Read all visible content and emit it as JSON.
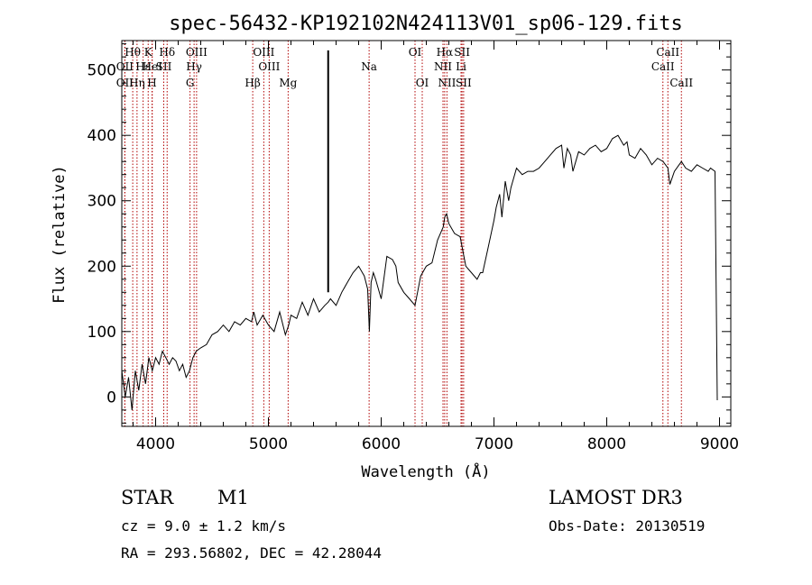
{
  "chart_data": {
    "type": "line",
    "title": "spec-56432-KP192102N424113V01_sp06-129.fits",
    "xlabel": "Wavelength (Å)",
    "ylabel": "Flux (relative)",
    "xlim": [
      3700,
      9100
    ],
    "ylim": [
      -45,
      545
    ],
    "xticks": [
      4000,
      5000,
      6000,
      7000,
      8000,
      9000
    ],
    "yticks": [
      0,
      100,
      200,
      300,
      400,
      500
    ],
    "series": [
      {
        "name": "spectrum",
        "x": [
          3700,
          3730,
          3760,
          3790,
          3820,
          3850,
          3880,
          3910,
          3940,
          3970,
          4000,
          4030,
          4060,
          4090,
          4120,
          4150,
          4180,
          4210,
          4240,
          4270,
          4300,
          4330,
          4360,
          4400,
          4450,
          4500,
          4550,
          4600,
          4650,
          4700,
          4750,
          4800,
          4850,
          4870,
          4900,
          4950,
          5000,
          5050,
          5100,
          5150,
          5180,
          5200,
          5250,
          5300,
          5350,
          5400,
          5450,
          5500,
          5530,
          5550,
          5600,
          5650,
          5700,
          5750,
          5800,
          5850,
          5880,
          5895,
          5910,
          5930,
          5950,
          6000,
          6050,
          6100,
          6130,
          6150,
          6200,
          6250,
          6300,
          6350,
          6400,
          6450,
          6500,
          6550,
          6563,
          6580,
          6600,
          6650,
          6700,
          6750,
          6800,
          6850,
          6880,
          6900,
          6950,
          7000,
          7020,
          7050,
          7070,
          7100,
          7130,
          7150,
          7200,
          7250,
          7300,
          7350,
          7400,
          7450,
          7500,
          7550,
          7600,
          7620,
          7650,
          7680,
          7700,
          7750,
          7800,
          7850,
          7900,
          7950,
          8000,
          8050,
          8100,
          8150,
          8180,
          8200,
          8250,
          8300,
          8350,
          8400,
          8450,
          8500,
          8542,
          8560,
          8600,
          8662,
          8700,
          8750,
          8800,
          8850,
          8900,
          8920,
          8960,
          8980
        ],
        "values": [
          40,
          0,
          30,
          -20,
          40,
          10,
          50,
          20,
          60,
          40,
          60,
          50,
          70,
          60,
          50,
          60,
          55,
          40,
          50,
          30,
          40,
          60,
          70,
          75,
          80,
          95,
          100,
          110,
          100,
          115,
          110,
          120,
          115,
          130,
          110,
          125,
          110,
          100,
          130,
          95,
          110,
          125,
          120,
          145,
          125,
          150,
          130,
          140,
          145,
          150,
          140,
          160,
          175,
          190,
          200,
          185,
          165,
          100,
          175,
          190,
          180,
          150,
          215,
          210,
          200,
          175,
          160,
          150,
          140,
          185,
          200,
          205,
          240,
          260,
          275,
          280,
          265,
          250,
          245,
          200,
          190,
          180,
          190,
          190,
          230,
          270,
          290,
          310,
          275,
          330,
          300,
          320,
          350,
          340,
          345,
          345,
          350,
          360,
          370,
          380,
          385,
          350,
          380,
          370,
          345,
          375,
          370,
          380,
          385,
          375,
          380,
          395,
          400,
          385,
          390,
          370,
          365,
          380,
          370,
          355,
          365,
          360,
          350,
          325,
          345,
          360,
          350,
          345,
          355,
          350,
          345,
          350,
          345,
          -5
        ],
        "spike": {
          "x": 5530,
          "y": 530
        }
      }
    ],
    "spectral_lines": [
      {
        "label": "Hθ",
        "wavelength": 3797,
        "row": 1
      },
      {
        "label": "K",
        "wavelength": 3934,
        "row": 1
      },
      {
        "label": "Hδ",
        "wavelength": 4102,
        "row": 1
      },
      {
        "label": "OIII",
        "wavelength": 4363,
        "row": 1
      },
      {
        "label": "OIII",
        "wavelength": 4959,
        "row": 1
      },
      {
        "label": "OI",
        "wavelength": 6300,
        "row": 1
      },
      {
        "label": "Hα",
        "wavelength": 6563,
        "row": 1
      },
      {
        "label": "SII",
        "wavelength": 6717,
        "row": 1
      },
      {
        "label": "CaII",
        "wavelength": 8542,
        "row": 1
      },
      {
        "label": "OII",
        "wavelength": 3727,
        "row": 2
      },
      {
        "label": "Hε",
        "wavelength": 3889,
        "row": 2
      },
      {
        "label": "HeI",
        "wavelength": 3970,
        "row": 2
      },
      {
        "label": "SII",
        "wavelength": 4072,
        "row": 2
      },
      {
        "label": "Hγ",
        "wavelength": 4341,
        "row": 2
      },
      {
        "label": "OIII",
        "wavelength": 5007,
        "row": 2
      },
      {
        "label": "Na",
        "wavelength": 5893,
        "row": 2
      },
      {
        "label": "NII",
        "wavelength": 6548,
        "row": 2
      },
      {
        "label": "Li",
        "wavelength": 6708,
        "row": 2
      },
      {
        "label": "CaII",
        "wavelength": 8498,
        "row": 2
      },
      {
        "label": "OII",
        "wavelength": 3727,
        "row": 3
      },
      {
        "label": "Hη",
        "wavelength": 3835,
        "row": 3
      },
      {
        "label": "H",
        "wavelength": 3968,
        "row": 3
      },
      {
        "label": "G",
        "wavelength": 4305,
        "row": 3
      },
      {
        "label": "Hβ",
        "wavelength": 4861,
        "row": 3
      },
      {
        "label": "Mg",
        "wavelength": 5175,
        "row": 3
      },
      {
        "label": "OI",
        "wavelength": 6364,
        "row": 3
      },
      {
        "label": "NII",
        "wavelength": 6583,
        "row": 3
      },
      {
        "label": "SII",
        "wavelength": 6731,
        "row": 3
      },
      {
        "label": "CaII",
        "wavelength": 8662,
        "row": 3
      }
    ]
  },
  "info": {
    "object_class": "STAR",
    "subclass": "M1",
    "cz": "cz = 9.0 ± 1.2 km/s",
    "coords": "RA = 293.56802, DEC =  42.28044",
    "survey": "LAMOST DR3",
    "obs_date": "Obs-Date: 20130519"
  },
  "colors": {
    "line_marker": "#b00000",
    "spectrum": "#000000"
  }
}
